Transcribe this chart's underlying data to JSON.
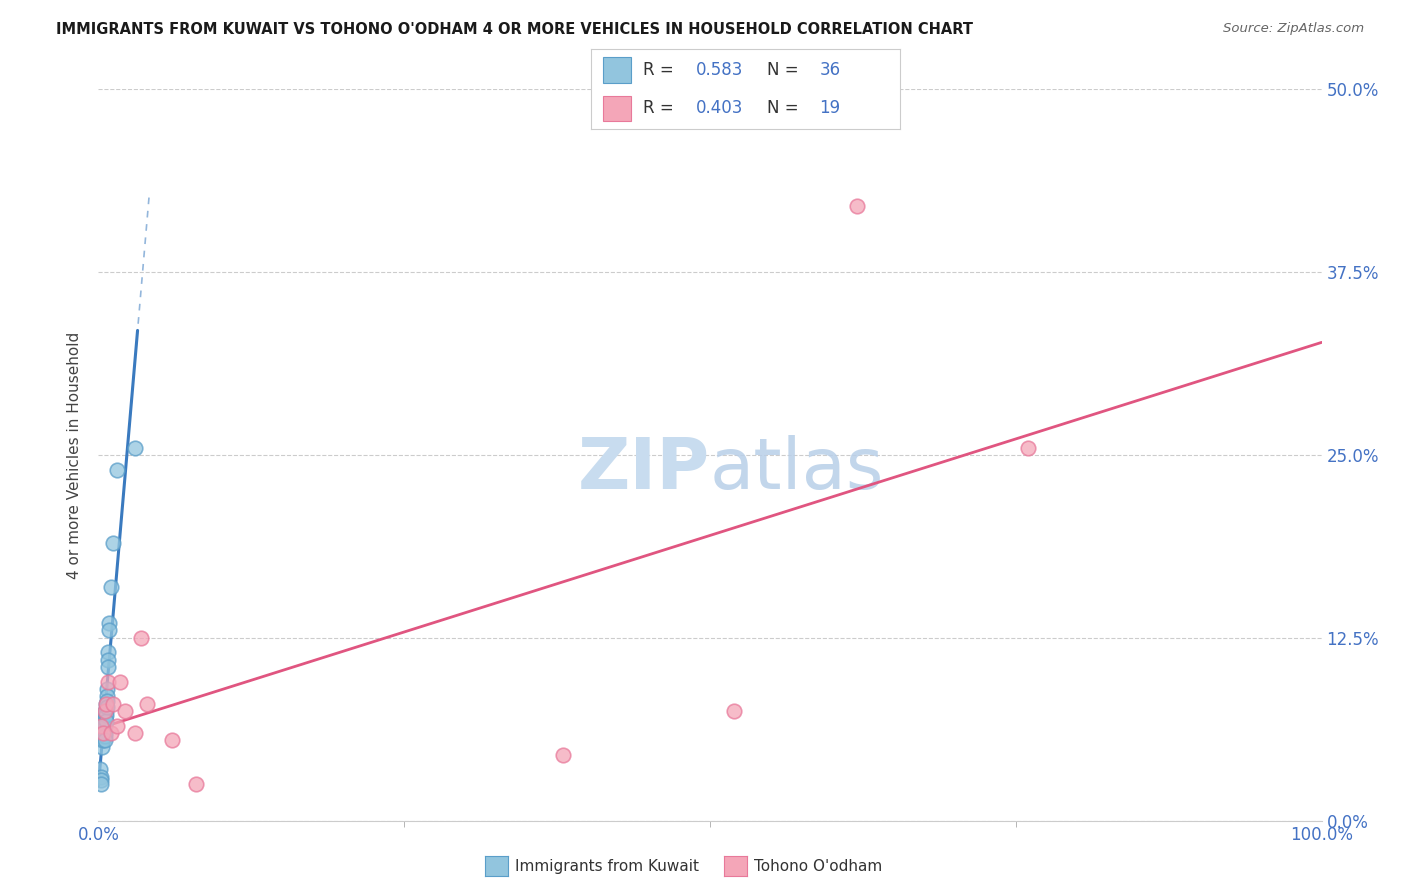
{
  "title": "IMMIGRANTS FROM KUWAIT VS TOHONO O'ODHAM 4 OR MORE VEHICLES IN HOUSEHOLD CORRELATION CHART",
  "source": "Source: ZipAtlas.com",
  "ylabel": "4 or more Vehicles in Household",
  "xlim": [
    0.0,
    1.0
  ],
  "ylim": [
    0.0,
    0.5
  ],
  "xtick_labels": [
    "0.0%",
    "100.0%"
  ],
  "xtick_positions": [
    0.0,
    1.0
  ],
  "ytick_labels": [
    "0.0%",
    "12.5%",
    "25.0%",
    "37.5%",
    "50.0%"
  ],
  "ytick_positions": [
    0.0,
    0.125,
    0.25,
    0.375,
    0.5
  ],
  "blue_R": 0.583,
  "blue_N": 36,
  "pink_R": 0.403,
  "pink_N": 19,
  "blue_color": "#92c5de",
  "pink_color": "#f4a6b8",
  "blue_edge_color": "#5a9ec9",
  "pink_edge_color": "#e8799a",
  "blue_line_color": "#3a7abf",
  "pink_line_color": "#e05580",
  "legend_label_blue": "Immigrants from Kuwait",
  "legend_label_pink": "Tohono O'odham",
  "watermark_zip": "ZIP",
  "watermark_atlas": "atlas",
  "background_color": "#ffffff",
  "blue_scatter_x": [
    0.001,
    0.002,
    0.002,
    0.002,
    0.003,
    0.003,
    0.003,
    0.004,
    0.004,
    0.004,
    0.004,
    0.004,
    0.005,
    0.005,
    0.005,
    0.005,
    0.005,
    0.005,
    0.005,
    0.006,
    0.006,
    0.006,
    0.006,
    0.007,
    0.007,
    0.007,
    0.007,
    0.008,
    0.008,
    0.008,
    0.009,
    0.009,
    0.01,
    0.012,
    0.015,
    0.03
  ],
  "blue_scatter_y": [
    0.035,
    0.03,
    0.028,
    0.025,
    0.06,
    0.055,
    0.05,
    0.07,
    0.065,
    0.06,
    0.058,
    0.055,
    0.075,
    0.072,
    0.07,
    0.065,
    0.06,
    0.058,
    0.055,
    0.08,
    0.075,
    0.072,
    0.068,
    0.09,
    0.085,
    0.082,
    0.078,
    0.115,
    0.11,
    0.105,
    0.135,
    0.13,
    0.16,
    0.19,
    0.24,
    0.255
  ],
  "pink_scatter_x": [
    0.002,
    0.004,
    0.005,
    0.006,
    0.008,
    0.01,
    0.012,
    0.015,
    0.018,
    0.022,
    0.03,
    0.035,
    0.04,
    0.06,
    0.08,
    0.38,
    0.52,
    0.62,
    0.76
  ],
  "pink_scatter_y": [
    0.065,
    0.06,
    0.075,
    0.08,
    0.095,
    0.06,
    0.08,
    0.065,
    0.095,
    0.075,
    0.06,
    0.125,
    0.08,
    0.055,
    0.025,
    0.045,
    0.075,
    0.42,
    0.255
  ]
}
